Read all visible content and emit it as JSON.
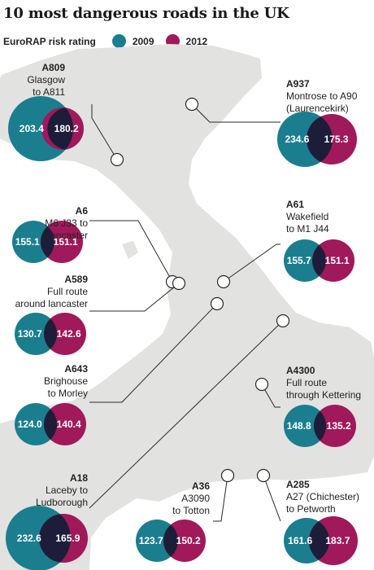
{
  "title": "10 most dangerous roads in the UK",
  "legend": {
    "label": "EuroRAP risk rating",
    "items": [
      {
        "name": "2009",
        "color": "#1a7e8f"
      },
      {
        "name": "2012",
        "color": "#a0195a"
      }
    ]
  },
  "chart_data": {
    "type": "venn-circle-pairs",
    "title": "10 most dangerous roads in the UK",
    "series": [
      {
        "name": "2009",
        "color": "#1a7e8f"
      },
      {
        "name": "2012",
        "color": "#a0195a"
      }
    ],
    "roads": [
      {
        "id": "a809",
        "code": "A809",
        "desc": [
          "Glasgow",
          "to A811"
        ],
        "v2009": "203.4",
        "v2012": "180.2"
      },
      {
        "id": "a937",
        "code": "A937",
        "desc": [
          "Montrose to A90",
          "(Laurencekirk)"
        ],
        "v2009": "234.6",
        "v2012": "175.3"
      },
      {
        "id": "a6",
        "code": "A6",
        "desc": [
          "M6 J33 to",
          "Lancaster"
        ],
        "v2009": "155.1",
        "v2012": "151.1"
      },
      {
        "id": "a61",
        "code": "A61",
        "desc": [
          "Wakefield",
          "to M1 J44"
        ],
        "v2009": "155.7",
        "v2012": "151.1"
      },
      {
        "id": "a589",
        "code": "A589",
        "desc": [
          "Full route",
          "around lancaster"
        ],
        "v2009": "130.7",
        "v2012": "142.6"
      },
      {
        "id": "a643",
        "code": "A643",
        "desc": [
          "Brighouse",
          "to Morley"
        ],
        "v2009": "124.0",
        "v2012": "140.4"
      },
      {
        "id": "a4300",
        "code": "A4300",
        "desc": [
          "Full route",
          "through Kettering"
        ],
        "v2009": "148.8",
        "v2012": "135.2"
      },
      {
        "id": "a18",
        "code": "A18",
        "desc": [
          "Laceby to",
          "Ludborough"
        ],
        "v2009": "232.6",
        "v2012": "165.9"
      },
      {
        "id": "a36",
        "code": "A36",
        "desc": [
          "A3090",
          "to Totton"
        ],
        "v2009": "123.7",
        "v2012": "150.2"
      },
      {
        "id": "a285",
        "code": "A285",
        "desc": [
          "A27 (Chichester)",
          "to Petworth"
        ],
        "v2009": "161.6",
        "v2012": "183.7"
      }
    ]
  }
}
